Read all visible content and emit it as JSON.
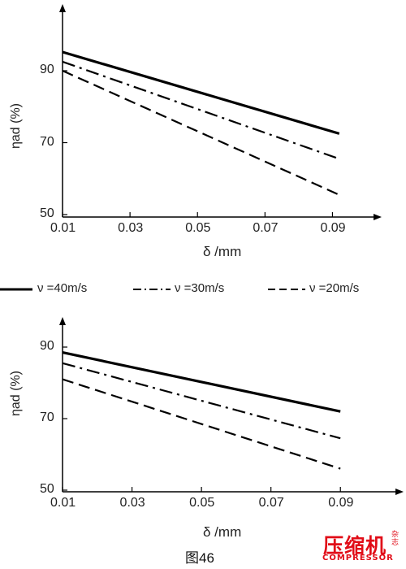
{
  "figure_caption": "图46",
  "legend": {
    "entries": [
      {
        "label": "ν =40m/s",
        "style": "solid"
      },
      {
        "label": "ν =30m/s",
        "style": "dashdot"
      },
      {
        "label": "ν =20m/s",
        "style": "dashed"
      }
    ]
  },
  "watermark": {
    "text_cn": "压缩机",
    "text_small": "杂志",
    "text_en": "COMPRESSOR",
    "color": "#e10d18"
  },
  "chart_data": [
    {
      "type": "line",
      "title": "",
      "xlabel": "δ /mm",
      "ylabel": "ηad (%)",
      "xlim": [
        0.01,
        0.1
      ],
      "ylim": [
        50,
        100
      ],
      "xticks": [
        "0.01",
        "0.03",
        "0.05",
        "0.07",
        "0.09"
      ],
      "yticks": [
        "50",
        "70",
        "90"
      ],
      "grid": false,
      "series": [
        {
          "name": "ν =40m/s",
          "style": "solid",
          "x": [
            0.01,
            0.092
          ],
          "y": [
            95.2,
            72.5
          ]
        },
        {
          "name": "ν =30m/s",
          "style": "dashdot",
          "x": [
            0.01,
            0.092
          ],
          "y": [
            92.5,
            65.5
          ]
        },
        {
          "name": "ν =20m/s",
          "style": "dashed",
          "x": [
            0.01,
            0.092
          ],
          "y": [
            90,
            55.5
          ]
        }
      ]
    },
    {
      "type": "line",
      "title": "",
      "xlabel": "δ /mm",
      "ylabel": "ηad (%)",
      "xlim": [
        0.01,
        0.1
      ],
      "ylim": [
        50,
        95
      ],
      "xticks": [
        "0.01",
        "0.03",
        "0.05",
        "0.07",
        "0.09"
      ],
      "yticks": [
        "50",
        "70",
        "90"
      ],
      "grid": false,
      "series": [
        {
          "name": "ν =40m/s",
          "style": "solid",
          "x": [
            0.01,
            0.09
          ],
          "y": [
            88.5,
            72
          ]
        },
        {
          "name": "ν =30m/s",
          "style": "dashdot",
          "x": [
            0.01,
            0.09
          ],
          "y": [
            85.5,
            64.5
          ]
        },
        {
          "name": "ν =20m/s",
          "style": "dashed",
          "x": [
            0.01,
            0.09
          ],
          "y": [
            81,
            56
          ]
        }
      ]
    }
  ]
}
